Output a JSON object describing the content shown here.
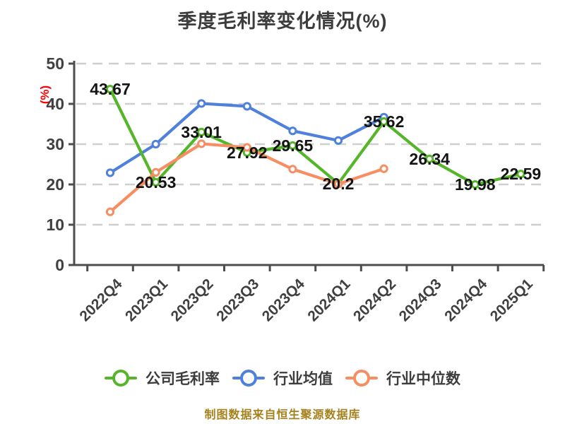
{
  "title": "季度毛利率变化情况(%)",
  "y_axis_label": "(%)",
  "footer": "制图数据来自恒生聚源数据库",
  "colors": {
    "company": "#56b62b",
    "industry_avg": "#4e80dc",
    "industry_median": "#f78e63",
    "axis": "#4d4d4d",
    "grid": "#cfcfcf",
    "tick_text": "#404040",
    "title_text": "#3d3d3d",
    "data_label": "#141414",
    "y_label_red": "#ff0000",
    "footer_text": "#a6821e"
  },
  "chart_data": {
    "type": "line",
    "title": "季度毛利率变化情况(%)",
    "ylabel": "(%)",
    "ylim": [
      0,
      50
    ],
    "yticks": [
      0,
      10,
      20,
      30,
      40,
      50
    ],
    "grid": "horizontal-dashed",
    "legend_position": "bottom",
    "categories": [
      "2022Q4",
      "2023Q1",
      "2023Q2",
      "2023Q3",
      "2023Q4",
      "2024Q1",
      "2024Q2",
      "2024Q3",
      "2024Q4",
      "2025Q1"
    ],
    "series": [
      {
        "id": "company",
        "name": "公司毛利率",
        "color": "#56b62b",
        "show_labels": true,
        "values": [
          43.67,
          20.53,
          33.01,
          27.92,
          29.65,
          20.2,
          35.62,
          26.34,
          19.98,
          22.59
        ]
      },
      {
        "id": "industry-avg",
        "name": "行业均值",
        "color": "#4e80dc",
        "show_labels": false,
        "values": [
          22.9,
          30.0,
          40.1,
          39.4,
          33.3,
          30.9,
          36.7
        ]
      },
      {
        "id": "industry-median",
        "name": "行业中位数",
        "color": "#f78e63",
        "show_labels": false,
        "values": [
          13.2,
          23.0,
          30.1,
          29.2,
          23.8,
          20.1,
          23.9
        ]
      }
    ]
  }
}
